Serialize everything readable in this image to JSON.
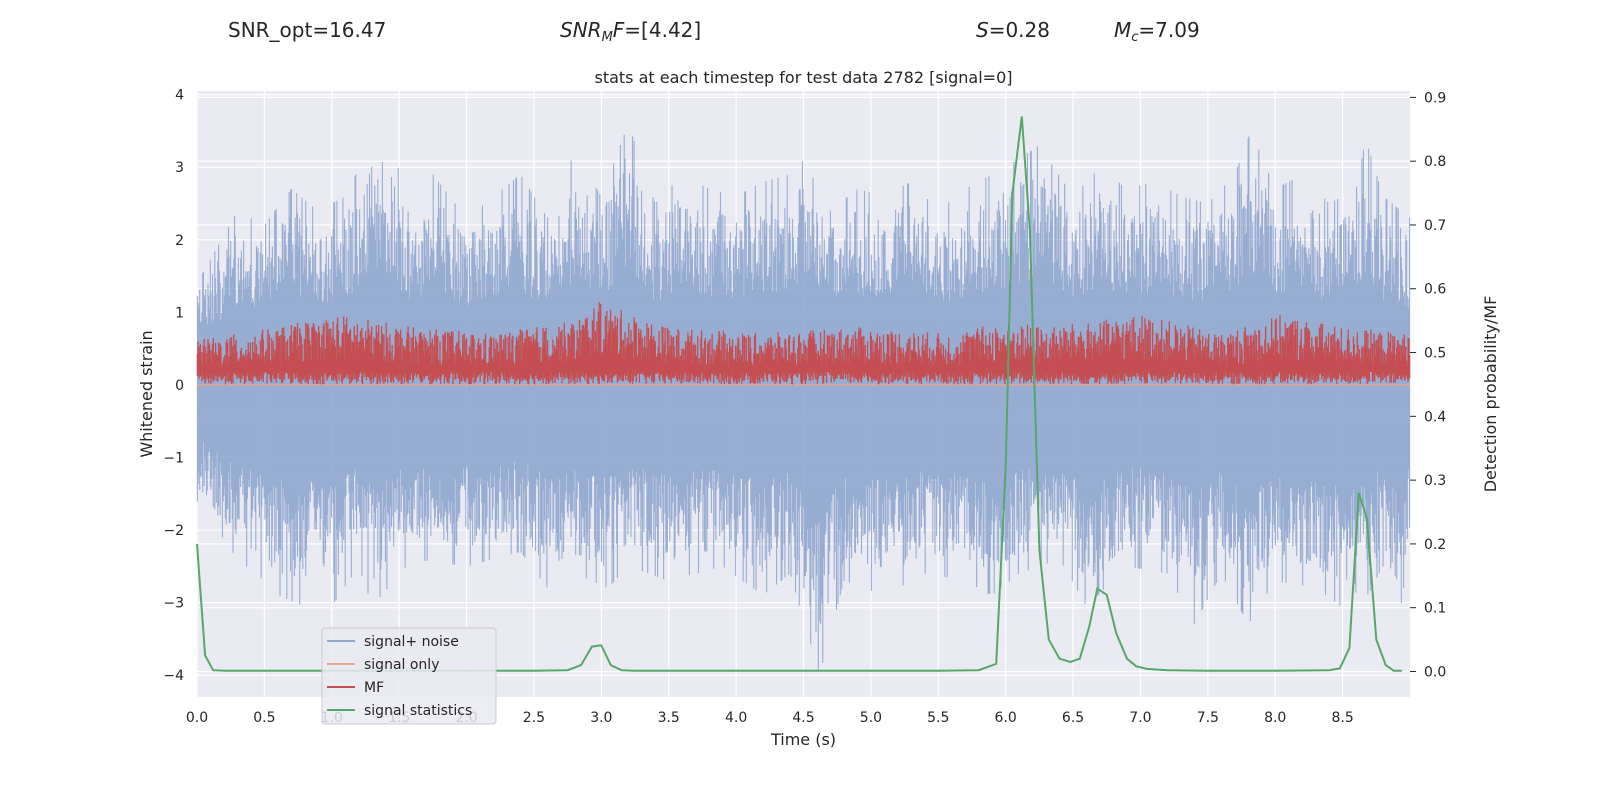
{
  "header": {
    "snr_opt": "SNR_opt=16.47",
    "snr_mf_base": "SNR",
    "snr_mf_sub": "M",
    "snr_mf_tail": "F",
    "snr_mf_value": "=[4.42]",
    "s_symbol": "S",
    "s_value": "=0.28",
    "mc_symbol": "M",
    "mc_sub": "c",
    "mc_value": "=7.09"
  },
  "colors": {
    "background": "#EAEAF2",
    "grid": "#FFFFFF",
    "noise": "#8FA6CE",
    "signal_only": "#E6A68A",
    "mf": "#C44E52",
    "statistics": "#55A868"
  },
  "chart_data": {
    "type": "line",
    "title": "stats at each timestep for test data 2782 [signal=0]",
    "xlabel": "Time (s)",
    "ylabel": "Whitened strain",
    "y2label": "Detection probability/MF",
    "xlim": [
      0.0,
      9.0
    ],
    "ylim": [
      -4.3,
      4.05
    ],
    "y2lim": [
      -0.04,
      0.91
    ],
    "xticks": [
      "0.0",
      "0.5",
      "1.0",
      "1.5",
      "2.0",
      "2.5",
      "3.0",
      "3.5",
      "4.0",
      "4.5",
      "5.0",
      "5.5",
      "6.0",
      "6.5",
      "7.0",
      "7.5",
      "8.0",
      "8.5"
    ],
    "yticks": [
      "4",
      "3",
      "2",
      "1",
      "0",
      "−1",
      "−2",
      "−3",
      "−4"
    ],
    "y2ticks": [
      "0.9",
      "0.8",
      "0.7",
      "0.6",
      "0.5",
      "0.4",
      "0.3",
      "0.2",
      "0.1",
      "0.0"
    ],
    "grid": true,
    "legend_position": "bottom-left",
    "series": [
      {
        "name": "signal+ noise",
        "axis": "left",
        "description": "dense whitened strain noise",
        "band_upper": [
          [
            0.0,
            1.4
          ],
          [
            0.3,
            2.4
          ],
          [
            0.5,
            2.2
          ],
          [
            0.7,
            2.7
          ],
          [
            0.9,
            2.4
          ],
          [
            1.1,
            2.6
          ],
          [
            1.36,
            3.6
          ],
          [
            1.6,
            2.5
          ],
          [
            1.75,
            2.9
          ],
          [
            2.0,
            2.3
          ],
          [
            2.2,
            2.6
          ],
          [
            2.4,
            2.9
          ],
          [
            2.6,
            2.3
          ],
          [
            2.8,
            3.2
          ],
          [
            3.0,
            2.6
          ],
          [
            3.2,
            3.6
          ],
          [
            3.4,
            2.5
          ],
          [
            3.6,
            2.9
          ],
          [
            3.8,
            2.7
          ],
          [
            4.0,
            2.6
          ],
          [
            4.2,
            2.8
          ],
          [
            4.4,
            2.9
          ],
          [
            4.5,
            3.1
          ],
          [
            4.7,
            2.4
          ],
          [
            4.9,
            2.7
          ],
          [
            5.1,
            2.6
          ],
          [
            5.3,
            2.8
          ],
          [
            5.5,
            2.4
          ],
          [
            5.7,
            2.7
          ],
          [
            6.0,
            3.0
          ],
          [
            6.25,
            3.3
          ],
          [
            6.5,
            2.6
          ],
          [
            6.7,
            3.0
          ],
          [
            6.9,
            2.7
          ],
          [
            7.1,
            2.8
          ],
          [
            7.3,
            2.6
          ],
          [
            7.5,
            2.5
          ],
          [
            7.7,
            2.9
          ],
          [
            7.82,
            3.5
          ],
          [
            8.0,
            2.7
          ],
          [
            8.2,
            2.9
          ],
          [
            8.4,
            2.5
          ],
          [
            8.6,
            2.7
          ],
          [
            8.67,
            3.4
          ],
          [
            8.8,
            2.6
          ],
          [
            9.0,
            2.3
          ]
        ],
        "band_lower": [
          [
            0.0,
            -1.6
          ],
          [
            0.3,
            -2.4
          ],
          [
            0.5,
            -2.7
          ],
          [
            0.6,
            -2.9
          ],
          [
            0.8,
            -3.05
          ],
          [
            0.9,
            -2.6
          ],
          [
            1.0,
            -3.05
          ],
          [
            1.2,
            -2.5
          ],
          [
            1.3,
            -3.05
          ],
          [
            1.6,
            -2.4
          ],
          [
            2.0,
            -2.5
          ],
          [
            2.4,
            -2.3
          ],
          [
            2.6,
            -2.8
          ],
          [
            2.8,
            -2.6
          ],
          [
            3.05,
            -2.8
          ],
          [
            3.2,
            -2.5
          ],
          [
            3.5,
            -2.7
          ],
          [
            3.9,
            -2.5
          ],
          [
            4.2,
            -2.9
          ],
          [
            4.4,
            -2.6
          ],
          [
            4.62,
            -4.0
          ],
          [
            4.8,
            -2.7
          ],
          [
            5.1,
            -2.9
          ],
          [
            5.4,
            -2.6
          ],
          [
            5.7,
            -2.7
          ],
          [
            5.9,
            -2.9
          ],
          [
            6.1,
            -2.6
          ],
          [
            6.4,
            -2.4
          ],
          [
            6.6,
            -3.05
          ],
          [
            6.9,
            -2.5
          ],
          [
            7.2,
            -2.6
          ],
          [
            7.4,
            -3.3
          ],
          [
            7.6,
            -2.6
          ],
          [
            7.8,
            -3.3
          ],
          [
            8.0,
            -2.7
          ],
          [
            8.3,
            -2.8
          ],
          [
            8.6,
            -3.2
          ],
          [
            8.8,
            -2.5
          ],
          [
            8.92,
            -3.2
          ],
          [
            9.0,
            -2.2
          ]
        ]
      },
      {
        "name": "signal only",
        "axis": "left",
        "x": [
          0.0,
          9.0
        ],
        "y": [
          0.0,
          0.0
        ]
      },
      {
        "name": "MF",
        "axis": "right",
        "band_upper": [
          [
            0.0,
            0.52
          ],
          [
            0.6,
            0.54
          ],
          [
            1.05,
            0.56
          ],
          [
            1.6,
            0.54
          ],
          [
            2.2,
            0.53
          ],
          [
            2.8,
            0.55
          ],
          [
            2.98,
            0.58
          ],
          [
            3.5,
            0.54
          ],
          [
            4.2,
            0.53
          ],
          [
            4.9,
            0.54
          ],
          [
            5.6,
            0.53
          ],
          [
            6.0,
            0.55
          ],
          [
            6.3,
            0.54
          ],
          [
            6.7,
            0.55
          ],
          [
            7.0,
            0.56
          ],
          [
            7.6,
            0.53
          ],
          [
            8.05,
            0.56
          ],
          [
            8.5,
            0.54
          ],
          [
            9.0,
            0.53
          ]
        ],
        "band_lower": [
          [
            0.0,
            0.45
          ],
          [
            9.0,
            0.45
          ]
        ]
      },
      {
        "name": "signal statistics",
        "axis": "right",
        "x": [
          0.0,
          0.06,
          0.12,
          0.2,
          0.5,
          1.0,
          1.5,
          2.0,
          2.5,
          2.75,
          2.85,
          2.93,
          3.0,
          3.07,
          3.15,
          3.25,
          3.5,
          4.0,
          4.5,
          5.0,
          5.5,
          5.8,
          5.93,
          6.0,
          6.05,
          6.12,
          6.18,
          6.25,
          6.32,
          6.4,
          6.48,
          6.55,
          6.62,
          6.68,
          6.75,
          6.82,
          6.9,
          6.97,
          7.05,
          7.2,
          7.5,
          8.0,
          8.4,
          8.48,
          8.55,
          8.62,
          8.68,
          8.75,
          8.82,
          8.88,
          8.94
        ],
        "y": [
          0.2,
          0.025,
          0.002,
          0.001,
          0.001,
          0.001,
          0.001,
          0.001,
          0.001,
          0.002,
          0.01,
          0.039,
          0.041,
          0.01,
          0.002,
          0.001,
          0.001,
          0.001,
          0.001,
          0.001,
          0.001,
          0.002,
          0.012,
          0.32,
          0.75,
          0.87,
          0.69,
          0.19,
          0.05,
          0.02,
          0.015,
          0.02,
          0.07,
          0.13,
          0.12,
          0.06,
          0.02,
          0.008,
          0.004,
          0.002,
          0.001,
          0.001,
          0.002,
          0.005,
          0.037,
          0.28,
          0.24,
          0.05,
          0.01,
          0.001,
          0.001
        ]
      }
    ]
  }
}
